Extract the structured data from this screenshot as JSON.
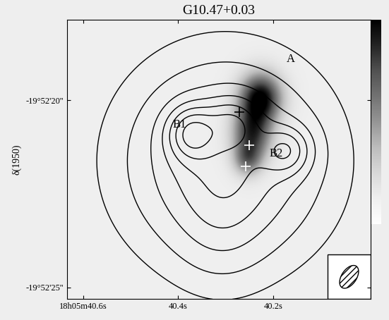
{
  "chart_data": {
    "type": "contour",
    "title": "G10.47+0.03",
    "ylabel": "δ(1950)",
    "xlim": [
      40.634,
      39.996
    ],
    "ylim": [
      -25.32,
      -17.85
    ],
    "xticks": [
      {
        "value": 40.6,
        "label": "18h05m40.6s"
      },
      {
        "value": 40.4,
        "label": "40.4s"
      },
      {
        "value": 40.2,
        "label": "40.2s"
      }
    ],
    "yticks": [
      {
        "value": -20,
        "label": "-19°52'20''"
      },
      {
        "value": -25,
        "label": "-19°52'25''"
      }
    ],
    "annotations": [
      {
        "text": "A",
        "x": 40.164,
        "y": -18.9
      },
      {
        "text": "B1",
        "x": 40.397,
        "y": -20.65
      },
      {
        "text": "B2",
        "x": 40.194,
        "y": -21.43
      }
    ],
    "markers": [
      {
        "x": 40.25,
        "y": -21.21,
        "color": "white"
      },
      {
        "x": 40.271,
        "y": -20.31,
        "color": "black"
      },
      {
        "x": 40.258,
        "y": -21.77,
        "color": "white"
      }
    ],
    "levels": [
      0.06,
      0.16,
      0.3,
      0.45,
      0.6,
      0.75,
      0.9,
      1.05
    ],
    "contour_components": [
      {
        "x": 40.301,
        "y": -21.62,
        "amplitude": 0.62,
        "sigma_x": 0.125,
        "sigma_y": 1.6
      },
      {
        "x": 40.31,
        "y": -23.4,
        "amplitude": 0.12,
        "sigma_x": 0.06,
        "sigma_y": 1.0
      },
      {
        "x": 40.375,
        "y": -20.87,
        "amplitude": 0.5,
        "sigma_x": 0.035,
        "sigma_y": 0.5
      },
      {
        "x": 40.17,
        "y": -21.34,
        "amplitude": 0.42,
        "sigma_x": 0.035,
        "sigma_y": 0.45
      },
      {
        "x": 40.286,
        "y": -20.6,
        "amplitude": 0.3,
        "sigma_x": 0.04,
        "sigma_y": 0.5
      }
    ],
    "image_components": [
      {
        "x": 40.227,
        "y": -19.95,
        "amplitude": 1.0,
        "sigma_x": 0.03,
        "sigma_y": 0.45
      },
      {
        "x": 40.245,
        "y": -20.9,
        "amplitude": 0.8,
        "sigma_x": 0.028,
        "sigma_y": 0.5
      },
      {
        "x": 40.255,
        "y": -21.6,
        "amplitude": 0.45,
        "sigma_x": 0.02,
        "sigma_y": 0.3
      }
    ]
  }
}
